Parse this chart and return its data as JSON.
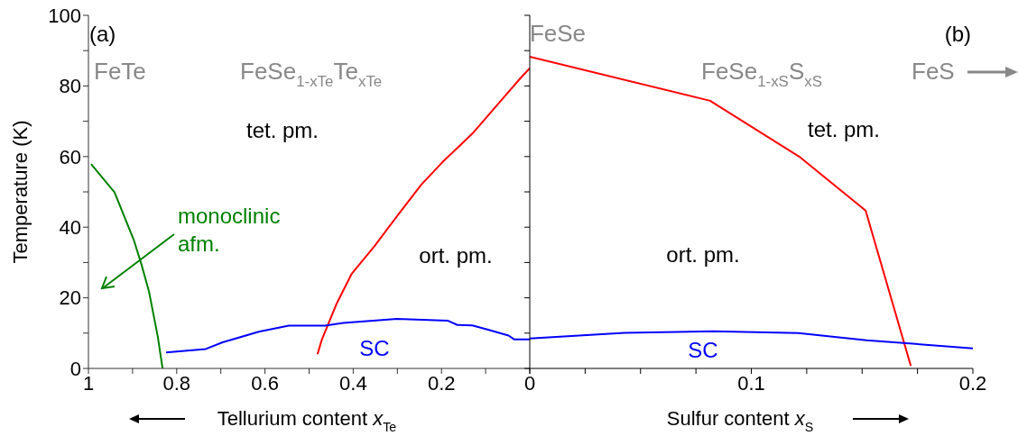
{
  "chart_data": [
    {
      "type": "line",
      "ylabel": "Temperature (K)",
      "xlabel": "Tellurium content x$_{Te}$",
      "xlim": [
        1,
        0
      ],
      "xticks": [
        1,
        {
          "value": 0.9,
          "label": null
        },
        0.8,
        {
          "value": 0.7,
          "label": null
        },
        0.6,
        {
          "value": 0.5,
          "label": null
        },
        0.4,
        {
          "value": 0.3,
          "label": null
        },
        0.2,
        {
          "value": 0.1,
          "label": null
        },
        {
          "value": 0,
          "label": null
        }
      ],
      "ylim": [
        0,
        100
      ],
      "yticks": [
        0,
        {
          "value": 10,
          "label": null
        },
        20,
        {
          "value": 30,
          "label": null
        },
        40,
        {
          "value": 50,
          "label": null
        },
        60,
        {
          "value": 70,
          "label": null
        },
        80,
        {
          "value": 90,
          "label": null
        },
        100
      ],
      "grid": false,
      "legend": false,
      "marker": "none",
      "line_style": "solid",
      "series": [
        {
          "color": "#008000",
          "x": [
            0.994,
            0.941,
            0.897,
            0.88,
            0.863,
            0.843,
            0.832
          ],
          "values": [
            57.9,
            49.9,
            36.3,
            29.5,
            21.9,
            9.1,
            0
          ]
        },
        {
          "color": "#ff0000",
          "x": [
            0.481,
            0.471,
            0.437,
            0.403,
            0.352,
            0.301,
            0.246,
            0.198,
            0.13,
            0.062,
            0.021,
            0
          ],
          "values": [
            4,
            8.2,
            18.5,
            26.9,
            34.6,
            43.1,
            52,
            58.4,
            66.5,
            76.3,
            82.2,
            85
          ]
        },
        {
          "color": "#0000ff",
          "x": [
            0.824,
            0.734,
            0.696,
            0.614,
            0.546,
            0.464,
            0.423,
            0.301,
            0.185,
            0.164,
            0.13,
            0.089,
            0.048,
            0.035,
            0
          ],
          "values": [
            4.5,
            5.5,
            7.4,
            10.4,
            12.1,
            12.1,
            12.9,
            14,
            13.5,
            12.3,
            12.2,
            10.8,
            9.3,
            8.2,
            8.2
          ]
        }
      ],
      "annotations": [
        "(a)",
        "FeTe",
        "FeSe$_{1-xTe}$Te$_{xTe}$",
        "FeSe",
        "tet. pm.",
        "ort. pm.",
        "SC",
        "monoclinic\nafm."
      ]
    },
    {
      "type": "line",
      "xlabel": "Sulfur content x$_{S}$",
      "xlim": [
        0,
        0.2
      ],
      "xticks": [
        0,
        {
          "value": 0.025,
          "label": null
        },
        {
          "value": 0.05,
          "label": null
        },
        {
          "value": 0.075,
          "label": null
        },
        0.1,
        {
          "value": 0.125,
          "label": null
        },
        {
          "value": 0.15,
          "label": null
        },
        {
          "value": 0.175,
          "label": null
        },
        0.2
      ],
      "ylim": [
        0,
        100
      ],
      "yticks": [
        0,
        {
          "value": 10,
          "label": null
        },
        20,
        {
          "value": 30,
          "label": null
        },
        40,
        {
          "value": 50,
          "label": null
        },
        60,
        {
          "value": 70,
          "label": null
        },
        80,
        {
          "value": 90,
          "label": null
        },
        100
      ],
      "tick_labels": "x",
      "grid": false,
      "legend": false,
      "marker": "none",
      "line_style": "solid",
      "series": [
        {
          "color": "#ff0000",
          "x": [
            0,
            0.0814,
            0.1216,
            0.1516,
            0.172
          ],
          "values": [
            88.3,
            75.8,
            60,
            44.7,
            0.7
          ]
        },
        {
          "color": "#0000ff",
          "x": [
            0,
            0.0428,
            0.0828,
            0.1213,
            0.152,
            0.2
          ],
          "values": [
            8.5,
            10.1,
            10.5,
            10,
            8,
            5.7
          ]
        }
      ],
      "annotations": [
        "(b)",
        "FeSe$_{1-xS}$S$_{xS}$",
        "FeS",
        "tet. pm.",
        "ort. pm.",
        "SC"
      ]
    }
  ]
}
